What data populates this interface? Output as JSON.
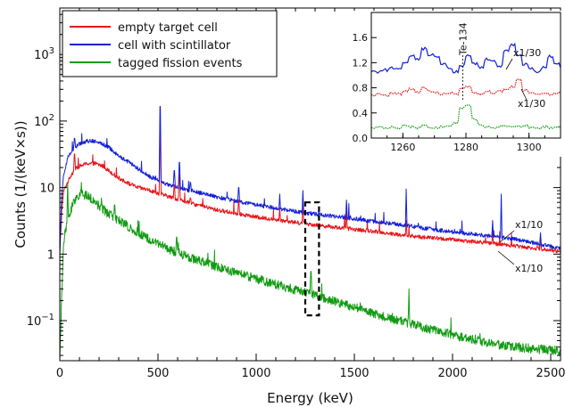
{
  "chart_data": {
    "type": "line",
    "title": "",
    "xlabel": "Energy (keV)",
    "ylabel": "Counts (1/(keV×s))",
    "xlim": [
      0,
      2550
    ],
    "ylim": [
      0.025,
      5000
    ],
    "yscale": "log",
    "grid": false,
    "legend_placement": "top-left",
    "x_ticks": [
      "0",
      "500",
      "1000",
      "1500",
      "2000",
      "2500"
    ],
    "y_ticks": [
      {
        "base": "10",
        "exp": "−1"
      },
      {
        "base": "1",
        "exp": ""
      },
      {
        "base": "10",
        "exp": ""
      },
      {
        "base": "10",
        "exp": "2"
      },
      {
        "base": "10",
        "exp": "3"
      }
    ],
    "series": [
      {
        "name": "empty target cell",
        "color": "#e8141a",
        "baseline": [
          [
            0,
            1.0
          ],
          [
            10,
            4.5
          ],
          [
            20,
            9
          ],
          [
            40,
            12
          ],
          [
            60,
            16
          ],
          [
            80,
            19
          ],
          [
            100,
            21
          ],
          [
            140,
            23
          ],
          [
            180,
            23
          ],
          [
            220,
            21
          ],
          [
            260,
            17
          ],
          [
            300,
            14
          ],
          [
            350,
            11.5
          ],
          [
            400,
            10
          ],
          [
            450,
            9.2
          ],
          [
            500,
            8.2
          ],
          [
            550,
            7.4
          ],
          [
            600,
            6.7
          ],
          [
            650,
            6.0
          ],
          [
            700,
            5.5
          ],
          [
            800,
            4.6
          ],
          [
            900,
            4.1
          ],
          [
            1000,
            3.6
          ],
          [
            1100,
            3.3
          ],
          [
            1200,
            3.0
          ],
          [
            1300,
            2.75
          ],
          [
            1400,
            2.55
          ],
          [
            1500,
            2.35
          ],
          [
            1600,
            2.2
          ],
          [
            1700,
            2.0
          ],
          [
            1800,
            1.85
          ],
          [
            1900,
            1.75
          ],
          [
            2000,
            1.65
          ],
          [
            2100,
            1.55
          ],
          [
            2200,
            1.45
          ],
          [
            2300,
            1.35
          ],
          [
            2400,
            1.25
          ],
          [
            2500,
            1.15
          ],
          [
            2550,
            1.1
          ]
        ],
        "peaks": [
          [
            75,
            32
          ],
          [
            511,
            70
          ],
          [
            583,
            11
          ],
          [
            609,
            16
          ],
          [
            665,
            7
          ],
          [
            911,
            6.5
          ],
          [
            1120,
            5
          ],
          [
            1238,
            6
          ],
          [
            1460,
            4.5
          ],
          [
            1764,
            3.2
          ],
          [
            2204,
            2.2
          ],
          [
            2448,
            1.7
          ]
        ]
      },
      {
        "name": "cell with scintillator",
        "color": "#1320d6",
        "baseline": [
          [
            0,
            1.0
          ],
          [
            10,
            8
          ],
          [
            20,
            16
          ],
          [
            40,
            28
          ],
          [
            60,
            35
          ],
          [
            80,
            41
          ],
          [
            100,
            45
          ],
          [
            140,
            50
          ],
          [
            180,
            50
          ],
          [
            220,
            45
          ],
          [
            260,
            38
          ],
          [
            300,
            30
          ],
          [
            350,
            24
          ],
          [
            400,
            19
          ],
          [
            450,
            15
          ],
          [
            500,
            13
          ],
          [
            550,
            11
          ],
          [
            600,
            10
          ],
          [
            650,
            9.2
          ],
          [
            700,
            8.5
          ],
          [
            800,
            7.2
          ],
          [
            900,
            6.2
          ],
          [
            1000,
            5.5
          ],
          [
            1100,
            4.9
          ],
          [
            1200,
            4.4
          ],
          [
            1300,
            4.0
          ],
          [
            1400,
            3.7
          ],
          [
            1500,
            3.4
          ],
          [
            1600,
            3.1
          ],
          [
            1700,
            2.85
          ],
          [
            1800,
            2.6
          ],
          [
            1900,
            2.35
          ],
          [
            2000,
            2.15
          ],
          [
            2100,
            2.0
          ],
          [
            2200,
            1.85
          ],
          [
            2300,
            1.7
          ],
          [
            2400,
            1.5
          ],
          [
            2500,
            1.3
          ],
          [
            2550,
            1.2
          ]
        ],
        "peaks": [
          [
            75,
            55
          ],
          [
            511,
            165
          ],
          [
            583,
            18
          ],
          [
            609,
            24
          ],
          [
            665,
            12
          ],
          [
            911,
            10
          ],
          [
            1120,
            8
          ],
          [
            1238,
            9
          ],
          [
            1460,
            6.5
          ],
          [
            1764,
            9.5
          ],
          [
            2204,
            3.2
          ],
          [
            2248,
            8
          ],
          [
            2448,
            2.1
          ]
        ]
      },
      {
        "name": "tagged fission events",
        "color": "#119b11",
        "baseline": [
          [
            0,
            0.025
          ],
          [
            10,
            0.25
          ],
          [
            20,
            1.6
          ],
          [
            30,
            2.4
          ],
          [
            40,
            2.9
          ],
          [
            60,
            5
          ],
          [
            80,
            7
          ],
          [
            100,
            8
          ],
          [
            140,
            7.7
          ],
          [
            180,
            6
          ],
          [
            220,
            4.7
          ],
          [
            260,
            3.8
          ],
          [
            300,
            3.2
          ],
          [
            350,
            2.6
          ],
          [
            400,
            2.1
          ],
          [
            450,
            1.7
          ],
          [
            500,
            1.45
          ],
          [
            550,
            1.22
          ],
          [
            600,
            1.05
          ],
          [
            700,
            0.82
          ],
          [
            800,
            0.64
          ],
          [
            900,
            0.52
          ],
          [
            1000,
            0.43
          ],
          [
            1100,
            0.35
          ],
          [
            1200,
            0.29
          ],
          [
            1300,
            0.24
          ],
          [
            1400,
            0.195
          ],
          [
            1500,
            0.16
          ],
          [
            1600,
            0.128
          ],
          [
            1700,
            0.106
          ],
          [
            1800,
            0.088
          ],
          [
            1900,
            0.073
          ],
          [
            2000,
            0.061
          ],
          [
            2100,
            0.052
          ],
          [
            2200,
            0.045
          ],
          [
            2300,
            0.041
          ],
          [
            2400,
            0.038
          ],
          [
            2500,
            0.036
          ],
          [
            2550,
            0.035
          ]
        ],
        "peaks": [
          [
            40,
            12
          ],
          [
            212,
            7
          ],
          [
            279,
            5.5
          ],
          [
            595,
            1.8
          ],
          [
            1279,
            0.55
          ],
          [
            1778,
            0.3
          ]
        ]
      }
    ],
    "annotations": [
      {
        "text": "x1/10",
        "target": "cell with scintillator",
        "x": 2380
      },
      {
        "text": "x1/10",
        "target": "empty target cell",
        "x": 2350
      }
    ],
    "highlight_box": {
      "x": [
        1250,
        1320
      ],
      "y": [
        0.12,
        6
      ]
    },
    "inset": {
      "type": "line",
      "xlim": [
        1250,
        1310
      ],
      "ylim": [
        0,
        2.0
      ],
      "x_ticks": [
        "1260",
        "1280",
        "1300"
      ],
      "y_ticks": [
        "0.0",
        "0.4",
        "0.8",
        "1.2",
        "1.6"
      ],
      "label": "Te-134",
      "label_x": 1279,
      "series": [
        {
          "name": "cell with scintillator",
          "color": "#1320d6",
          "points": [
            [
              1250,
              1.05
            ],
            [
              1252,
              1.05
            ],
            [
              1254,
              1.08
            ],
            [
              1256,
              1.12
            ],
            [
              1258,
              1.1
            ],
            [
              1260,
              1.18
            ],
            [
              1262,
              1.3
            ],
            [
              1264,
              1.25
            ],
            [
              1266,
              1.42
            ],
            [
              1268,
              1.32
            ],
            [
              1270,
              1.28
            ],
            [
              1272,
              1.18
            ],
            [
              1274,
              1.12
            ],
            [
              1276,
              1.05
            ],
            [
              1278,
              1.15
            ],
            [
              1280,
              1.3
            ],
            [
              1282,
              1.18
            ],
            [
              1284,
              1.12
            ],
            [
              1286,
              1.25
            ],
            [
              1288,
              1.22
            ],
            [
              1290,
              1.15
            ],
            [
              1292,
              1.38
            ],
            [
              1294,
              1.48
            ],
            [
              1296,
              1.32
            ],
            [
              1298,
              1.18
            ],
            [
              1300,
              1.1
            ],
            [
              1302,
              1.05
            ],
            [
              1304,
              1.12
            ],
            [
              1306,
              1.3
            ],
            [
              1308,
              1.18
            ],
            [
              1310,
              1.12
            ]
          ]
        },
        {
          "name": "empty target cell",
          "color": "#e8141a",
          "points": [
            [
              1250,
              0.68
            ],
            [
              1252,
              0.7
            ],
            [
              1254,
              0.68
            ],
            [
              1256,
              0.72
            ],
            [
              1258,
              0.7
            ],
            [
              1260,
              0.75
            ],
            [
              1262,
              0.78
            ],
            [
              1264,
              0.72
            ],
            [
              1266,
              0.8
            ],
            [
              1268,
              0.74
            ],
            [
              1270,
              0.72
            ],
            [
              1272,
              0.7
            ],
            [
              1274,
              0.72
            ],
            [
              1276,
              0.7
            ],
            [
              1278,
              0.78
            ],
            [
              1280,
              0.82
            ],
            [
              1282,
              0.72
            ],
            [
              1284,
              0.7
            ],
            [
              1286,
              0.74
            ],
            [
              1288,
              0.72
            ],
            [
              1290,
              0.74
            ],
            [
              1292,
              0.78
            ],
            [
              1294,
              0.82
            ],
            [
              1296,
              0.92
            ],
            [
              1298,
              0.76
            ],
            [
              1300,
              0.72
            ],
            [
              1302,
              0.7
            ],
            [
              1304,
              0.72
            ],
            [
              1306,
              0.7
            ],
            [
              1308,
              0.72
            ],
            [
              1310,
              0.7
            ]
          ]
        },
        {
          "name": "tagged fission events",
          "color": "#119b11",
          "points": [
            [
              1250,
              0.16
            ],
            [
              1252,
              0.17
            ],
            [
              1254,
              0.16
            ],
            [
              1256,
              0.18
            ],
            [
              1258,
              0.16
            ],
            [
              1260,
              0.2
            ],
            [
              1262,
              0.18
            ],
            [
              1264,
              0.16
            ],
            [
              1266,
              0.2
            ],
            [
              1268,
              0.17
            ],
            [
              1270,
              0.16
            ],
            [
              1272,
              0.18
            ],
            [
              1274,
              0.2
            ],
            [
              1276,
              0.24
            ],
            [
              1278,
              0.48
            ],
            [
              1280,
              0.52
            ],
            [
              1282,
              0.3
            ],
            [
              1284,
              0.2
            ],
            [
              1286,
              0.18
            ],
            [
              1288,
              0.16
            ],
            [
              1290,
              0.18
            ],
            [
              1292,
              0.2
            ],
            [
              1294,
              0.17
            ],
            [
              1296,
              0.18
            ],
            [
              1298,
              0.2
            ],
            [
              1300,
              0.17
            ],
            [
              1302,
              0.16
            ],
            [
              1304,
              0.18
            ],
            [
              1306,
              0.16
            ],
            [
              1308,
              0.18
            ],
            [
              1310,
              0.16
            ]
          ]
        }
      ],
      "annotations": [
        {
          "text": "x1/30",
          "target": "cell with scintillator"
        },
        {
          "text": "x1/30",
          "target": "empty target cell"
        }
      ]
    }
  }
}
